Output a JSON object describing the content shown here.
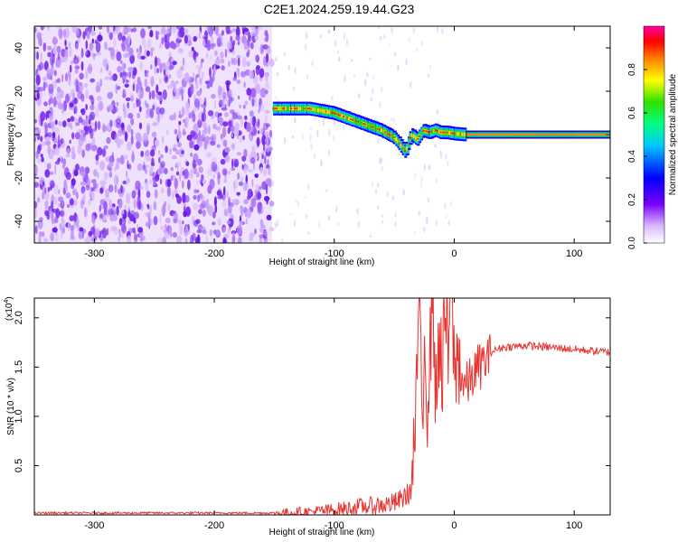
{
  "title": "C2E1.2024.259.19.44.G23",
  "chart_data": [
    {
      "type": "heatmap",
      "title": "",
      "xlabel": "Height of straight line (km)",
      "ylabel": "Frequency (Hz)",
      "xlim": [
        -350,
        130
      ],
      "ylim": [
        -50,
        50
      ],
      "xticks": [
        -300,
        -200,
        -100,
        0,
        100
      ],
      "yticks": [
        -40,
        -20,
        0,
        20,
        40
      ],
      "colorbar": {
        "label": "Normalized spectral amplitude",
        "ticks": [
          0.0,
          0.2,
          0.4,
          0.6,
          0.8
        ],
        "range": [
          0,
          1
        ]
      },
      "noise_region_x": [
        -350,
        -152
      ],
      "signal_trace": {
        "x": [
          -150,
          -140,
          -130,
          -120,
          -110,
          -100,
          -90,
          -80,
          -70,
          -60,
          -50,
          -45,
          -40,
          -35,
          -30,
          -25,
          -20,
          -15,
          -10,
          -5,
          0,
          10,
          50,
          100,
          130
        ],
        "frequency": [
          12,
          12,
          12,
          12,
          11,
          10,
          8,
          6,
          4,
          2,
          -1,
          -4,
          -8,
          0,
          -2,
          2,
          1,
          2,
          1,
          1,
          0.5,
          0,
          0,
          0,
          0
        ]
      }
    },
    {
      "type": "line",
      "title": "",
      "xlabel": "Height of straight line (km)",
      "ylabel": "SNR (10 * v/v)",
      "y_multiplier": "(x10^4)",
      "y_multiplier_base": "(x10",
      "y_multiplier_exp": "4",
      "xlim": [
        -350,
        130
      ],
      "ylim": [
        0,
        2.2
      ],
      "xticks": [
        -300,
        -200,
        -100,
        0,
        100
      ],
      "yticks": [
        0.5,
        1.0,
        1.5,
        2.0
      ],
      "series": [
        {
          "color": "#e8332f",
          "x": [
            -350,
            -300,
            -250,
            -200,
            -150,
            -120,
            -100,
            -80,
            -60,
            -50,
            -45,
            -40,
            -35,
            -32,
            -30,
            -28,
            -26,
            -25,
            -23,
            -20,
            -18,
            -15,
            -12,
            -10,
            -8,
            -5,
            -2,
            0,
            5,
            10,
            20,
            30,
            40,
            60,
            80,
            100,
            120,
            130
          ],
          "values": [
            0.02,
            0.02,
            0.02,
            0.02,
            0.02,
            0.03,
            0.05,
            0.08,
            0.1,
            0.12,
            0.15,
            0.2,
            0.25,
            0.6,
            2.0,
            1.2,
            0.6,
            2.05,
            0.9,
            1.4,
            2.2,
            0.8,
            1.8,
            1.0,
            1.9,
            1.4,
            2.2,
            1.2,
            1.45,
            1.35,
            1.55,
            1.65,
            1.7,
            1.72,
            1.7,
            1.68,
            1.66,
            1.65
          ]
        }
      ]
    }
  ]
}
